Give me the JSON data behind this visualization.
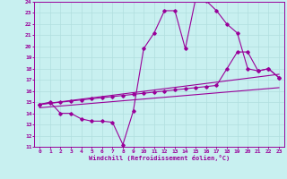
{
  "xlabel": "Windchill (Refroidissement éolien,°C)",
  "background_color": "#c8f0f0",
  "line_color": "#990099",
  "xlim": [
    -0.5,
    23.5
  ],
  "ylim": [
    11,
    24
  ],
  "xticks": [
    0,
    1,
    2,
    3,
    4,
    5,
    6,
    7,
    8,
    9,
    10,
    11,
    12,
    13,
    14,
    15,
    16,
    17,
    18,
    19,
    20,
    21,
    22,
    23
  ],
  "yticks": [
    11,
    12,
    13,
    14,
    15,
    16,
    17,
    18,
    19,
    20,
    21,
    22,
    23,
    24
  ],
  "grid_color": "#b0dede",
  "series1_x": [
    0,
    1,
    2,
    3,
    4,
    5,
    6,
    7,
    8,
    9,
    10,
    11,
    12,
    13,
    14,
    15,
    16,
    17,
    18,
    19,
    20,
    21,
    22,
    23
  ],
  "series1_y": [
    14.8,
    15.0,
    14.0,
    14.0,
    13.5,
    13.3,
    13.3,
    13.2,
    11.2,
    14.2,
    19.8,
    21.2,
    23.2,
    23.2,
    19.8,
    24.3,
    24.1,
    23.2,
    22.0,
    21.2,
    18.0,
    17.8,
    18.0,
    17.2
  ],
  "series2_x": [
    0,
    1,
    2,
    3,
    4,
    5,
    6,
    7,
    8,
    9,
    10,
    11,
    12,
    13,
    14,
    15,
    16,
    17,
    18,
    19,
    20,
    21,
    22,
    23
  ],
  "series2_y": [
    14.8,
    14.9,
    15.0,
    15.1,
    15.2,
    15.3,
    15.4,
    15.5,
    15.6,
    15.7,
    15.8,
    15.9,
    16.0,
    16.1,
    16.2,
    16.3,
    16.4,
    16.5,
    18.0,
    19.5,
    19.5,
    17.8,
    18.0,
    17.2
  ],
  "series3_x": [
    0,
    23
  ],
  "series3_y": [
    14.8,
    17.5
  ],
  "series4_x": [
    0,
    23
  ],
  "series4_y": [
    14.5,
    16.3
  ]
}
